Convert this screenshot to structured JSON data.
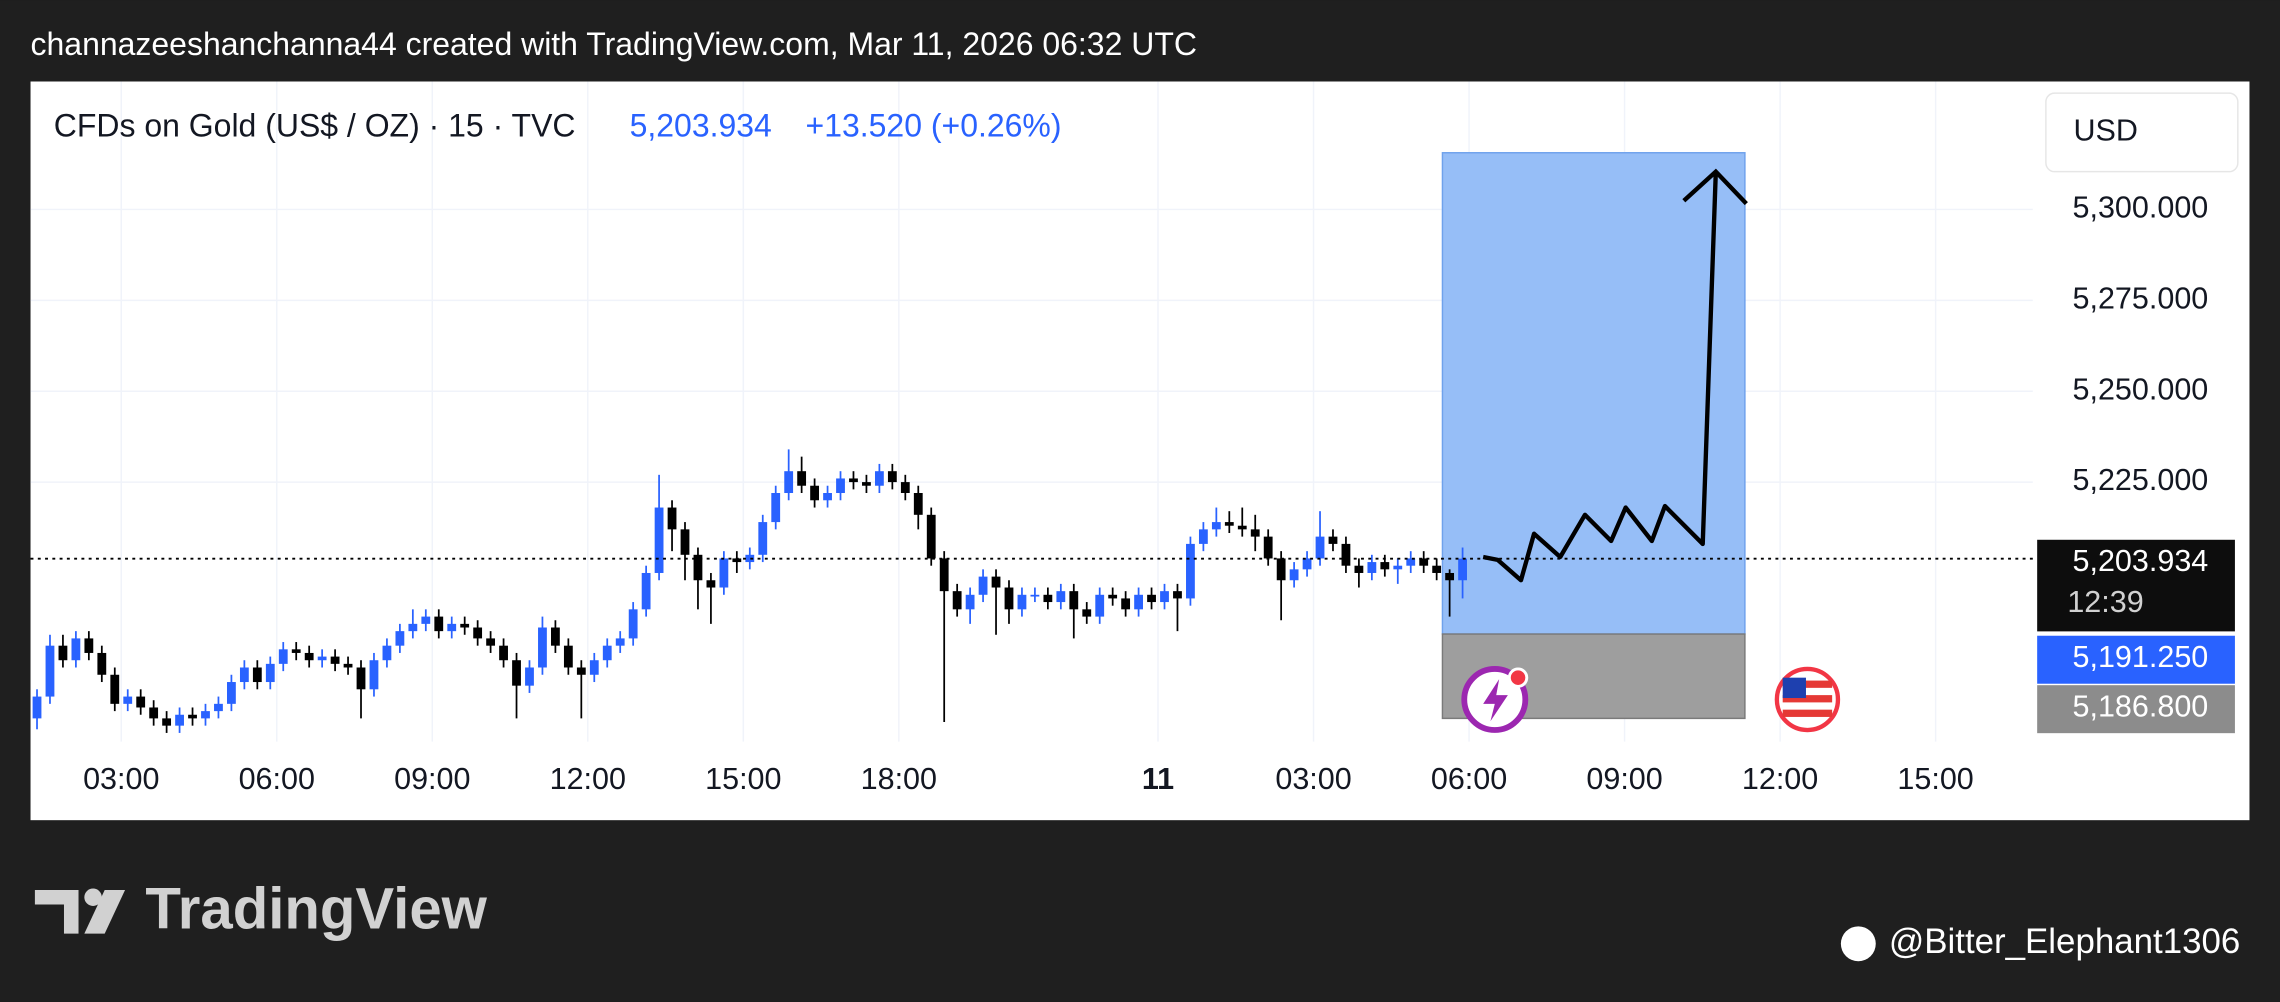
{
  "header": {
    "text": "channazeeshanchanna44 created with TradingView.com, Mar 11, 2026 06:32 UTC"
  },
  "chart_data": {
    "type": "candlestick",
    "title": "CFDs on Gold (US$ / OZ) · 15 · TVC",
    "price_text": "5,203.934",
    "change_text": "+13.520 (+0.26%)",
    "currency": "USD",
    "up_color": "#2962ff",
    "down_color": "#000000",
    "xlim": [
      -0.5,
      154
    ],
    "ylim": [
      5153.6,
      5335.2
    ],
    "xticks": [
      {
        "value": 6.5,
        "label": "03:00"
      },
      {
        "value": 18.5,
        "label": "06:00"
      },
      {
        "value": 30.5,
        "label": "09:00"
      },
      {
        "value": 42.5,
        "label": "12:00"
      },
      {
        "value": 54.5,
        "label": "15:00"
      },
      {
        "value": 66.5,
        "label": "18:00"
      },
      {
        "value": 86.5,
        "label": "11"
      },
      {
        "value": 98.5,
        "label": "03:00"
      },
      {
        "value": 110.5,
        "label": "06:00"
      },
      {
        "value": 122.5,
        "label": "09:00"
      },
      {
        "value": 134.5,
        "label": "12:00"
      },
      {
        "value": 146.5,
        "label": "15:00"
      }
    ],
    "yticks": [
      {
        "value": 5300,
        "label": "5,300.000"
      },
      {
        "value": 5275,
        "label": "5,275.000"
      },
      {
        "value": 5250,
        "label": "5,250.000"
      },
      {
        "value": 5225,
        "label": "5,225.000"
      }
    ],
    "grid": true,
    "last_price": {
      "value": 5203.934,
      "label": "5,203.934",
      "countdown": "12:39"
    },
    "price_labels": [
      {
        "value": 5191.25,
        "label": "5,191.250",
        "color": "#2962ff"
      },
      {
        "value": 5186.8,
        "label": "5,186.800",
        "color": "#8c8c8c"
      }
    ],
    "x": [
      0,
      1,
      2,
      3,
      4,
      5,
      6,
      7,
      8,
      9,
      10,
      11,
      12,
      13,
      14,
      15,
      16,
      17,
      18,
      19,
      20,
      21,
      22,
      23,
      24,
      25,
      26,
      27,
      28,
      29,
      30,
      31,
      32,
      33,
      34,
      35,
      36,
      37,
      38,
      39,
      40,
      41,
      42,
      43,
      44,
      45,
      46,
      47,
      48,
      49,
      50,
      51,
      52,
      53,
      54,
      55,
      56,
      57,
      58,
      59,
      60,
      61,
      62,
      63,
      64,
      65,
      66,
      67,
      68,
      69,
      70,
      71,
      72,
      73,
      74,
      75,
      76,
      77,
      78,
      79,
      80,
      81,
      82,
      83,
      84,
      85,
      86,
      87,
      88,
      89,
      90,
      91,
      92,
      93,
      94,
      95,
      96,
      97,
      98,
      99,
      100,
      101,
      102,
      103,
      104,
      105,
      106,
      107,
      108,
      109,
      110
    ],
    "open": [
      5160,
      5166,
      5180,
      5176,
      5182,
      5178,
      5172,
      5164,
      5166,
      5163,
      5160,
      5158,
      5161,
      5160,
      5162,
      5164,
      5170,
      5174,
      5170,
      5175,
      5179,
      5178,
      5176,
      5177,
      5175,
      5174,
      5168,
      5176,
      5180,
      5184,
      5186,
      5188,
      5184,
      5186,
      5185,
      5182,
      5180,
      5176,
      5169,
      5174,
      5185,
      5180,
      5174,
      5172,
      5176,
      5180,
      5182,
      5190,
      5200,
      5218,
      5212,
      5205,
      5198,
      5196,
      5204,
      5203,
      5205,
      5214,
      5222,
      5228,
      5224,
      5220,
      5222,
      5226,
      5225,
      5224,
      5228,
      5225,
      5222,
      5216,
      5204,
      5195,
      5190,
      5194,
      5199,
      5196,
      5190,
      5194,
      5194,
      5192,
      5195,
      5190,
      5188,
      5194,
      5193,
      5190,
      5194,
      5192,
      5195,
      5193,
      5208,
      5212,
      5214,
      5213,
      5212,
      5210,
      5204,
      5198,
      5201,
      5204,
      5210,
      5208,
      5202,
      5200,
      5203,
      5201,
      5202,
      5204,
      5202,
      5200,
      5198
    ],
    "high": [
      5168,
      5183,
      5183,
      5184,
      5184,
      5180,
      5174,
      5168,
      5168,
      5165,
      5162,
      5163,
      5163,
      5164,
      5166,
      5172,
      5176,
      5176,
      5177,
      5181,
      5181,
      5180,
      5179,
      5179,
      5177,
      5176,
      5178,
      5182,
      5186,
      5190,
      5190,
      5190,
      5188,
      5188,
      5187,
      5184,
      5182,
      5178,
      5176,
      5188,
      5187,
      5182,
      5176,
      5178,
      5182,
      5184,
      5192,
      5202,
      5227,
      5220,
      5214,
      5207,
      5200,
      5206,
      5206,
      5207,
      5216,
      5224,
      5234,
      5232,
      5226,
      5224,
      5228,
      5228,
      5227,
      5230,
      5230,
      5227,
      5224,
      5218,
      5206,
      5197,
      5196,
      5201,
      5201,
      5198,
      5196,
      5196,
      5196,
      5197,
      5197,
      5192,
      5196,
      5196,
      5195,
      5196,
      5196,
      5197,
      5197,
      5210,
      5214,
      5218,
      5217,
      5218,
      5216,
      5212,
      5206,
      5203,
      5206,
      5217,
      5212,
      5210,
      5204,
      5205,
      5205,
      5204,
      5206,
      5206,
      5204,
      5201,
      5207
    ],
    "low": [
      5157,
      5164,
      5174,
      5174,
      5176,
      5170,
      5162,
      5162,
      5161,
      5158,
      5156,
      5156,
      5158,
      5158,
      5160,
      5162,
      5168,
      5168,
      5168,
      5173,
      5176,
      5174,
      5174,
      5173,
      5172,
      5160,
      5166,
      5174,
      5178,
      5182,
      5184,
      5182,
      5182,
      5183,
      5180,
      5178,
      5174,
      5160,
      5167,
      5172,
      5178,
      5172,
      5160,
      5170,
      5174,
      5178,
      5180,
      5188,
      5198,
      5206,
      5198,
      5190,
      5186,
      5194,
      5200,
      5201,
      5203,
      5212,
      5220,
      5222,
      5218,
      5218,
      5220,
      5223,
      5222,
      5222,
      5223,
      5220,
      5212,
      5202,
      5159,
      5188,
      5186,
      5192,
      5183,
      5186,
      5188,
      5192,
      5190,
      5190,
      5182,
      5186,
      5186,
      5191,
      5188,
      5188,
      5190,
      5190,
      5184,
      5191,
      5206,
      5210,
      5211,
      5210,
      5206,
      5202,
      5187,
      5196,
      5199,
      5202,
      5206,
      5200,
      5196,
      5198,
      5199,
      5197,
      5200,
      5200,
      5198,
      5188,
      5193
    ],
    "close": [
      5166,
      5180,
      5176,
      5182,
      5178,
      5172,
      5164,
      5166,
      5163,
      5160,
      5158,
      5161,
      5160,
      5162,
      5164,
      5170,
      5174,
      5170,
      5175,
      5179,
      5178,
      5176,
      5177,
      5175,
      5174,
      5168,
      5176,
      5180,
      5184,
      5186,
      5188,
      5184,
      5186,
      5185,
      5182,
      5180,
      5176,
      5169,
      5174,
      5185,
      5180,
      5174,
      5172,
      5176,
      5180,
      5182,
      5190,
      5200,
      5218,
      5212,
      5205,
      5198,
      5196,
      5204,
      5203,
      5205,
      5214,
      5222,
      5228,
      5224,
      5220,
      5222,
      5226,
      5225,
      5224,
      5228,
      5225,
      5222,
      5216,
      5204,
      5195,
      5190,
      5194,
      5199,
      5196,
      5190,
      5194,
      5194,
      5192,
      5195,
      5190,
      5188,
      5194,
      5193,
      5190,
      5194,
      5192,
      5195,
      5193,
      5208,
      5212,
      5214,
      5213,
      5212,
      5210,
      5204,
      5198,
      5201,
      5204,
      5210,
      5208,
      5202,
      5200,
      5203,
      5201,
      5202,
      5204,
      5202,
      5200,
      5198,
      5203.934
    ]
  },
  "footer": {
    "brand": "TradingView",
    "user": "@Bitter_Elephant1306"
  }
}
